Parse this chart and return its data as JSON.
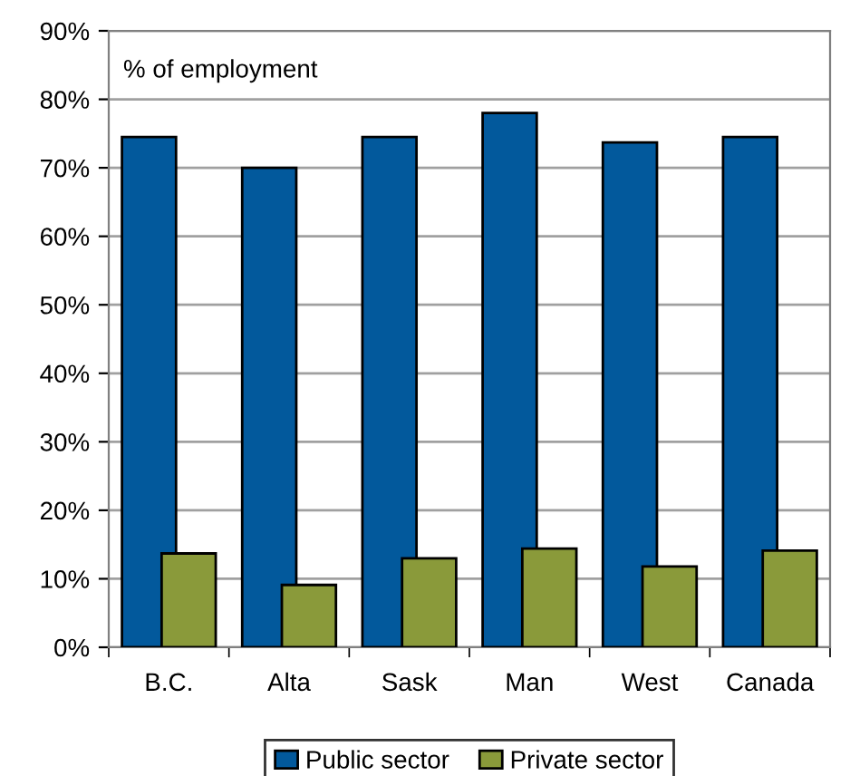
{
  "chart_data": {
    "type": "bar",
    "categories": [
      "B.C.",
      "Alta",
      "Sask",
      "Man",
      "West",
      "Canada"
    ],
    "series": [
      {
        "name": "Public sector",
        "color": "#02599c",
        "values": [
          74.5,
          70,
          74.5,
          78,
          73.7,
          74.5
        ]
      },
      {
        "name": "Private sector",
        "color": "#8a9a3a",
        "values": [
          13.7,
          9.1,
          13,
          14.4,
          11.8,
          14.1
        ]
      }
    ],
    "ylim": [
      0,
      90
    ],
    "yticks": [
      {
        "value": 0,
        "label": "0%"
      },
      {
        "value": 10,
        "label": "10%"
      },
      {
        "value": 20,
        "label": "20%"
      },
      {
        "value": 30,
        "label": "30%"
      },
      {
        "value": 40,
        "label": "40%"
      },
      {
        "value": 50,
        "label": "50%"
      },
      {
        "value": 60,
        "label": "60%"
      },
      {
        "value": 70,
        "label": "70%"
      },
      {
        "value": 80,
        "label": "80%"
      },
      {
        "value": 90,
        "label": "90%"
      }
    ],
    "annotations": [
      "% of employment"
    ],
    "grid": "y",
    "legend": "bottom"
  }
}
